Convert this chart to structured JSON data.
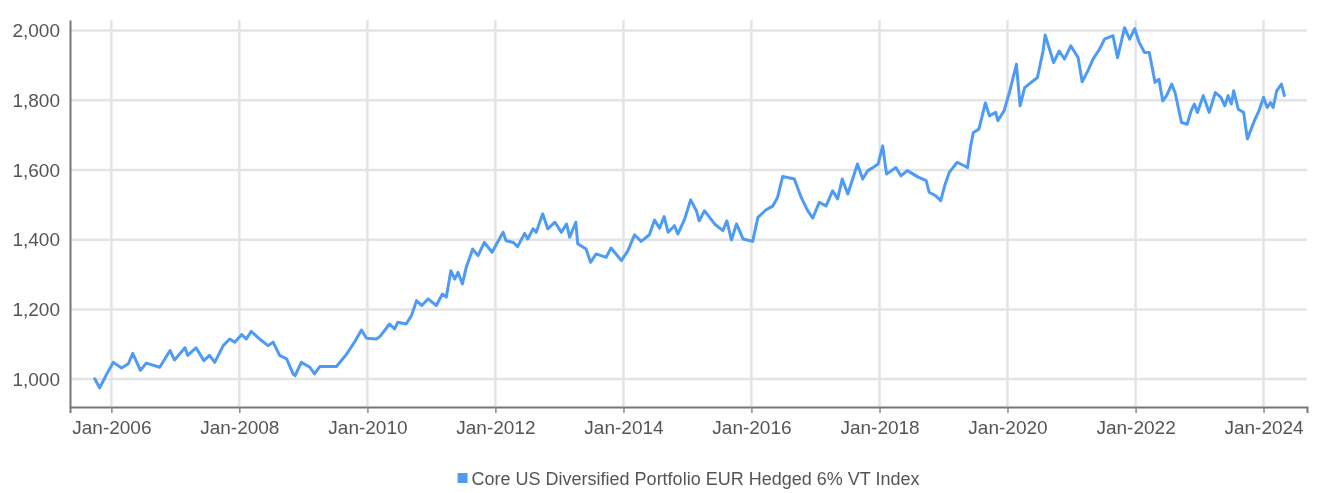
{
  "chart_data": {
    "type": "line",
    "x": [
      "2005-09-28",
      "2005-10-26",
      "2005-11-17",
      "2005-12-06",
      "2006-01-12",
      "2006-02-28",
      "2006-04-08",
      "2006-05-03",
      "2006-06-16",
      "2006-07-19",
      "2006-10-04",
      "2006-12-02",
      "2006-12-27",
      "2007-02-25",
      "2007-03-13",
      "2007-04-29",
      "2007-06-13",
      "2007-07-15",
      "2007-08-14",
      "2007-10-01",
      "2007-11-07",
      "2007-12-06",
      "2008-01-15",
      "2008-02-10",
      "2008-03-09",
      "2008-04-26",
      "2008-06-13",
      "2008-07-12",
      "2008-08-18",
      "2008-09-27",
      "2008-11-03",
      "2008-11-14",
      "2008-12-20",
      "2009-02-07",
      "2009-03-05",
      "2009-04-04",
      "2009-07-08",
      "2009-09-05",
      "2009-10-19",
      "2009-11-28",
      "2009-12-27",
      "2010-02-21",
      "2010-03-13",
      "2010-05-07",
      "2010-06-05",
      "2010-06-23",
      "2010-08-10",
      "2010-09-09",
      "2010-10-08",
      "2010-11-07",
      "2010-12-13",
      "2011-01-29",
      "2011-03-05",
      "2011-03-27",
      "2011-04-22",
      "2011-05-14",
      "2011-06-02",
      "2011-06-27",
      "2011-07-19",
      "2011-08-25",
      "2011-09-24",
      "2011-10-30",
      "2011-12-13",
      "2012-02-14",
      "2012-03-02",
      "2012-04-12",
      "2012-05-07",
      "2012-06-16",
      "2012-07-04",
      "2012-08-03",
      "2012-08-21",
      "2012-09-27",
      "2012-10-26",
      "2012-12-06",
      "2013-01-12",
      "2013-02-10",
      "2013-02-28",
      "2013-04-04",
      "2013-04-15",
      "2013-06-02",
      "2013-06-27",
      "2013-07-29",
      "2013-09-24",
      "2013-10-22",
      "2013-12-20",
      "2014-01-26",
      "2014-03-05",
      "2014-04-12",
      "2014-05-29",
      "2014-06-27",
      "2014-07-26",
      "2014-08-21",
      "2014-09-13",
      "2014-10-19",
      "2014-11-07",
      "2014-12-16",
      "2015-01-19",
      "2015-02-21",
      "2015-03-09",
      "2015-04-08",
      "2015-06-05",
      "2015-07-22",
      "2015-08-14",
      "2015-09-09",
      "2015-10-08",
      "2015-11-14",
      "2016-01-08",
      "2016-02-07",
      "2016-03-23",
      "2016-05-03",
      "2016-05-29",
      "2016-06-27",
      "2016-09-02",
      "2016-10-11",
      "2016-11-17",
      "2016-12-16",
      "2017-01-22",
      "2017-03-02",
      "2017-04-08",
      "2017-05-07",
      "2017-06-02",
      "2017-07-04",
      "2017-08-28",
      "2017-09-27",
      "2017-10-26",
      "2017-11-25",
      "2017-12-24",
      "2018-01-19",
      "2018-02-10",
      "2018-04-04",
      "2018-05-03",
      "2018-06-09",
      "2018-08-07",
      "2018-09-24",
      "2018-10-11",
      "2018-11-17",
      "2018-12-16",
      "2019-01-08",
      "2019-02-03",
      "2019-03-20",
      "2019-05-18",
      "2019-06-05",
      "2019-06-20",
      "2019-07-22",
      "2019-08-28",
      "2019-09-20",
      "2019-10-26",
      "2019-11-07",
      "2019-12-13",
      "2020-01-12",
      "2020-02-21",
      "2020-03-13",
      "2020-04-08",
      "2020-05-03",
      "2020-06-20",
      "2020-07-22",
      "2020-08-03",
      "2020-08-28",
      "2020-09-20",
      "2020-10-22",
      "2020-11-21",
      "2020-12-27",
      "2021-02-07",
      "2021-03-02",
      "2021-04-04",
      "2021-05-03",
      "2021-06-09",
      "2021-07-08",
      "2021-08-25",
      "2021-09-20",
      "2021-10-30",
      "2021-11-28",
      "2021-12-27",
      "2022-01-22",
      "2022-02-21",
      "2022-03-20",
      "2022-04-22",
      "2022-05-14",
      "2022-06-05",
      "2022-06-27",
      "2022-07-26",
      "2022-08-14",
      "2022-09-20",
      "2022-10-22",
      "2022-11-14",
      "2022-12-02",
      "2022-12-20",
      "2023-01-22",
      "2023-02-25",
      "2023-04-01",
      "2023-05-03",
      "2023-05-25",
      "2023-06-13",
      "2023-07-01",
      "2023-07-15",
      "2023-08-10",
      "2023-09-09",
      "2023-10-01",
      "2023-10-22",
      "2023-11-14",
      "2023-12-06",
      "2024-01-01",
      "2024-01-22",
      "2024-02-10",
      "2024-02-25",
      "2024-03-16",
      "2024-04-12",
      "2024-04-29"
    ],
    "series": [
      {
        "name": "Core US Diversified Portfolio EUR Hedged 6% VT Index",
        "color": "#4e9bf5",
        "values": [
          1001,
          975,
          996,
          1015,
          1048,
          1032,
          1044,
          1074,
          1025,
          1046,
          1034,
          1082,
          1055,
          1090,
          1068,
          1090,
          1053,
          1068,
          1048,
          1096,
          1115,
          1106,
          1128,
          1115,
          1137,
          1115,
          1096,
          1106,
          1068,
          1058,
          1015,
          1010,
          1048,
          1034,
          1015,
          1036,
          1036,
          1072,
          1106,
          1141,
          1117,
          1115,
          1122,
          1158,
          1144,
          1163,
          1158,
          1182,
          1225,
          1211,
          1230,
          1211,
          1244,
          1235,
          1311,
          1287,
          1306,
          1273,
          1321,
          1373,
          1354,
          1392,
          1364,
          1421,
          1397,
          1392,
          1380,
          1418,
          1402,
          1431,
          1421,
          1474,
          1431,
          1450,
          1421,
          1445,
          1407,
          1450,
          1388,
          1373,
          1335,
          1359,
          1349,
          1376,
          1340,
          1368,
          1414,
          1395,
          1414,
          1456,
          1433,
          1466,
          1421,
          1440,
          1416,
          1459,
          1514,
          1483,
          1454,
          1483,
          1445,
          1426,
          1454,
          1399,
          1445,
          1402,
          1395,
          1464,
          1485,
          1497,
          1521,
          1581,
          1574,
          1521,
          1483,
          1462,
          1507,
          1497,
          1540,
          1517,
          1574,
          1531,
          1617,
          1574,
          1598,
          1607,
          1617,
          1669,
          1588,
          1607,
          1583,
          1598,
          1580,
          1569,
          1536,
          1526,
          1512,
          1555,
          1593,
          1622,
          1607,
          1669,
          1707,
          1717,
          1792,
          1755,
          1765,
          1741,
          1770,
          1822,
          1903,
          1784,
          1836,
          1846,
          1865,
          1941,
          1987,
          1946,
          1908,
          1941,
          1918,
          1956,
          1922,
          1853,
          1884,
          1918,
          1946,
          1975,
          1985,
          1922,
          2008,
          1975,
          2005,
          1965,
          1937,
          1937,
          1851,
          1860,
          1798,
          1813,
          1846,
          1822,
          1736,
          1731,
          1770,
          1789,
          1765,
          1813,
          1765,
          1822,
          1808,
          1784,
          1813,
          1789,
          1827,
          1774,
          1765,
          1689,
          1717,
          1746,
          1770,
          1808,
          1779,
          1793,
          1779,
          1827,
          1846,
          1813
        ]
      }
    ],
    "xlim": [
      "2005-05-10",
      "2024-09-05"
    ],
    "xticks": [
      {
        "value": "2006-01",
        "label": "Jan-2006"
      },
      {
        "value": "2008-01",
        "label": "Jan-2008"
      },
      {
        "value": "2010-01",
        "label": "Jan-2010"
      },
      {
        "value": "2012-01",
        "label": "Jan-2012"
      },
      {
        "value": "2014-01",
        "label": "Jan-2014"
      },
      {
        "value": "2016-01",
        "label": "Jan-2016"
      },
      {
        "value": "2018-01",
        "label": "Jan-2018"
      },
      {
        "value": "2020-01",
        "label": "Jan-2020"
      },
      {
        "value": "2022-01",
        "label": "Jan-2022"
      },
      {
        "value": "2024-01",
        "label": "Jan-2024"
      }
    ],
    "ylim": [
      920,
      2030
    ],
    "yticks": [
      {
        "value": 1000,
        "label": "1,000"
      },
      {
        "value": 1200,
        "label": "1,200"
      },
      {
        "value": 1400,
        "label": "1,400"
      },
      {
        "value": 1600,
        "label": "1,600"
      },
      {
        "value": 1800,
        "label": "1,800"
      },
      {
        "value": 2000,
        "label": "2,000"
      }
    ],
    "grid": true,
    "legend": "bottom"
  }
}
